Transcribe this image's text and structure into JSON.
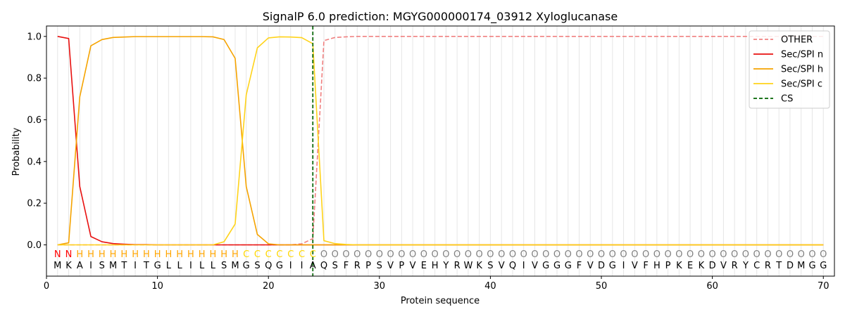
{
  "chart_data": {
    "type": "line",
    "title": "SignalP 6.0 prediction: MGYG000000174_03912 Xyloglucanase",
    "xlabel": "Protein sequence",
    "ylabel": "Probability",
    "xlim": [
      0,
      71
    ],
    "ylim": [
      -0.15,
      1.05
    ],
    "x_ticks": [
      0,
      10,
      20,
      30,
      40,
      50,
      60,
      70
    ],
    "y_ticks": [
      0.0,
      0.2,
      0.4,
      0.6,
      0.8,
      1.0
    ],
    "x_tick_labels": [
      "0",
      "10",
      "20",
      "30",
      "40",
      "50",
      "60",
      "70"
    ],
    "y_tick_labels": [
      "0.0",
      "0.2",
      "0.4",
      "0.6",
      "0.8",
      "1.0"
    ],
    "grid": "vertical lines at each residue",
    "legend_position": "top-right",
    "sequence": [
      "M",
      "K",
      "A",
      "I",
      "S",
      "M",
      "T",
      "I",
      "T",
      "G",
      "L",
      "L",
      "I",
      "L",
      "L",
      "S",
      "M",
      "G",
      "S",
      "Q",
      "G",
      "I",
      "I",
      "A",
      "Q",
      "S",
      "F",
      "R",
      "P",
      "S",
      "V",
      "P",
      "V",
      "E",
      "H",
      "Y",
      "R",
      "W",
      "K",
      "S",
      "V",
      "Q",
      "I",
      "V",
      "G",
      "G",
      "G",
      "F",
      "V",
      "D",
      "G",
      "I",
      "V",
      "F",
      "H",
      "P",
      "K",
      "E",
      "K",
      "D",
      "V",
      "R",
      "Y",
      "C",
      "R",
      "T",
      "D",
      "M",
      "G",
      "G"
    ],
    "region_labels": [
      "N",
      "N",
      "H",
      "H",
      "H",
      "H",
      "H",
      "H",
      "H",
      "H",
      "H",
      "H",
      "H",
      "H",
      "H",
      "H",
      "H",
      "C",
      "C",
      "C",
      "C",
      "C",
      "C",
      "C",
      "O",
      "O",
      "O",
      "O",
      "O",
      "O",
      "O",
      "O",
      "O",
      "O",
      "O",
      "O",
      "O",
      "O",
      "O",
      "O",
      "O",
      "O",
      "O",
      "O",
      "O",
      "O",
      "O",
      "O",
      "O",
      "O",
      "O",
      "O",
      "O",
      "O",
      "O",
      "O",
      "O",
      "O",
      "O",
      "O",
      "O",
      "O",
      "O",
      "O",
      "O",
      "O",
      "O",
      "O",
      "O",
      "O"
    ],
    "region_colors": {
      "N": "#ff0000",
      "H": "#ffa500",
      "C": "#ffd700",
      "O": "#808080"
    },
    "cleavage_site": 24,
    "series": [
      {
        "name": "OTHER",
        "color": "#f08080",
        "dash": "dashed",
        "x": [
          1,
          2,
          3,
          4,
          5,
          6,
          7,
          8,
          9,
          10,
          11,
          12,
          13,
          14,
          15,
          16,
          17,
          18,
          19,
          20,
          21,
          22,
          23,
          24,
          25,
          26,
          27,
          28,
          29,
          30,
          31,
          32,
          33,
          34,
          35,
          36,
          37,
          38,
          39,
          40,
          41,
          42,
          43,
          44,
          45,
          46,
          47,
          48,
          49,
          50,
          51,
          52,
          53,
          54,
          55,
          56,
          57,
          58,
          59,
          60,
          61,
          62,
          63,
          64,
          65,
          66,
          67,
          68,
          69,
          70
        ],
        "values": [
          0.0,
          0.0,
          0.0,
          0.0,
          0.0,
          0.0,
          0.0,
          0.0,
          0.0,
          0.0,
          0.0,
          0.0,
          0.0,
          0.0,
          0.0,
          0.0,
          0.0,
          0.0,
          0.0,
          0.0,
          0.0,
          0.0,
          0.005,
          0.03,
          0.98,
          0.995,
          0.998,
          1.0,
          1.0,
          1.0,
          1.0,
          1.0,
          1.0,
          1.0,
          1.0,
          1.0,
          1.0,
          1.0,
          1.0,
          1.0,
          1.0,
          1.0,
          1.0,
          1.0,
          1.0,
          1.0,
          1.0,
          1.0,
          1.0,
          1.0,
          1.0,
          1.0,
          1.0,
          1.0,
          1.0,
          1.0,
          1.0,
          1.0,
          1.0,
          1.0,
          1.0,
          1.0,
          1.0,
          1.0,
          1.0,
          1.0,
          1.0,
          1.0,
          1.0,
          1.0
        ]
      },
      {
        "name": "Sec/SPI n",
        "color": "#e8100f",
        "dash": "solid",
        "x": [
          1,
          2,
          3,
          4,
          5,
          6,
          7,
          8,
          9,
          10,
          11,
          12,
          13,
          14,
          15,
          16,
          17,
          18,
          19,
          20,
          21,
          22,
          23,
          24,
          25,
          26,
          27,
          28,
          29,
          30,
          31,
          32,
          33,
          34,
          35,
          36,
          37,
          38,
          39,
          40,
          41,
          42,
          43,
          44,
          45,
          46,
          47,
          48,
          49,
          50,
          51,
          52,
          53,
          54,
          55,
          56,
          57,
          58,
          59,
          60,
          61,
          62,
          63,
          64,
          65,
          66,
          67,
          68,
          69,
          70
        ],
        "values": [
          1.0,
          0.99,
          0.28,
          0.04,
          0.015,
          0.006,
          0.003,
          0.001,
          0.001,
          0.0,
          0.0,
          0.0,
          0.0,
          0.0,
          0.0,
          0.0,
          0.0,
          0.0,
          0.0,
          0.0,
          0.0,
          0.0,
          0.0,
          0.0,
          0.0,
          0.0,
          0.0,
          0.0,
          0.0,
          0.0,
          0.0,
          0.0,
          0.0,
          0.0,
          0.0,
          0.0,
          0.0,
          0.0,
          0.0,
          0.0,
          0.0,
          0.0,
          0.0,
          0.0,
          0.0,
          0.0,
          0.0,
          0.0,
          0.0,
          0.0,
          0.0,
          0.0,
          0.0,
          0.0,
          0.0,
          0.0,
          0.0,
          0.0,
          0.0,
          0.0,
          0.0,
          0.0,
          0.0,
          0.0,
          0.0,
          0.0,
          0.0,
          0.0,
          0.0,
          0.0
        ]
      },
      {
        "name": "Sec/SPI h",
        "color": "#f5a300",
        "dash": "solid",
        "x": [
          1,
          2,
          3,
          4,
          5,
          6,
          7,
          8,
          9,
          10,
          11,
          12,
          13,
          14,
          15,
          16,
          17,
          18,
          19,
          20,
          21,
          22,
          23,
          24,
          25,
          26,
          27,
          28,
          29,
          30,
          31,
          32,
          33,
          34,
          35,
          36,
          37,
          38,
          39,
          40,
          41,
          42,
          43,
          44,
          45,
          46,
          47,
          48,
          49,
          50,
          51,
          52,
          53,
          54,
          55,
          56,
          57,
          58,
          59,
          60,
          61,
          62,
          63,
          64,
          65,
          66,
          67,
          68,
          69,
          70
        ],
        "values": [
          0.0,
          0.01,
          0.71,
          0.955,
          0.985,
          0.995,
          0.997,
          0.999,
          0.999,
          0.999,
          0.999,
          0.999,
          0.999,
          0.999,
          0.998,
          0.985,
          0.895,
          0.28,
          0.05,
          0.005,
          0.0,
          0.0,
          0.0,
          0.0,
          0.0,
          0.0,
          0.0,
          0.0,
          0.0,
          0.0,
          0.0,
          0.0,
          0.0,
          0.0,
          0.0,
          0.0,
          0.0,
          0.0,
          0.0,
          0.0,
          0.0,
          0.0,
          0.0,
          0.0,
          0.0,
          0.0,
          0.0,
          0.0,
          0.0,
          0.0,
          0.0,
          0.0,
          0.0,
          0.0,
          0.0,
          0.0,
          0.0,
          0.0,
          0.0,
          0.0,
          0.0,
          0.0,
          0.0,
          0.0,
          0.0,
          0.0,
          0.0,
          0.0,
          0.0,
          0.0
        ]
      },
      {
        "name": "Sec/SPI c",
        "color": "#ffd31a",
        "dash": "solid",
        "x": [
          1,
          2,
          3,
          4,
          5,
          6,
          7,
          8,
          9,
          10,
          11,
          12,
          13,
          14,
          15,
          16,
          17,
          18,
          19,
          20,
          21,
          22,
          23,
          24,
          25,
          26,
          27,
          28,
          29,
          30,
          31,
          32,
          33,
          34,
          35,
          36,
          37,
          38,
          39,
          40,
          41,
          42,
          43,
          44,
          45,
          46,
          47,
          48,
          49,
          50,
          51,
          52,
          53,
          54,
          55,
          56,
          57,
          58,
          59,
          60,
          61,
          62,
          63,
          64,
          65,
          66,
          67,
          68,
          69,
          70
        ],
        "values": [
          0.0,
          0.0,
          0.0,
          0.0,
          0.0,
          0.0,
          0.0,
          0.0,
          0.0,
          0.0,
          0.0,
          0.0,
          0.0,
          0.0,
          0.0,
          0.015,
          0.1,
          0.72,
          0.945,
          0.993,
          0.998,
          0.997,
          0.994,
          0.965,
          0.02,
          0.006,
          0.002,
          0.0,
          0.0,
          0.0,
          0.0,
          0.0,
          0.0,
          0.0,
          0.0,
          0.0,
          0.0,
          0.0,
          0.0,
          0.0,
          0.0,
          0.0,
          0.0,
          0.0,
          0.0,
          0.0,
          0.0,
          0.0,
          0.0,
          0.0,
          0.0,
          0.0,
          0.0,
          0.0,
          0.0,
          0.0,
          0.0,
          0.0,
          0.0,
          0.0,
          0.0,
          0.0,
          0.0,
          0.0,
          0.0,
          0.0,
          0.0,
          0.0,
          0.0,
          0.0
        ]
      }
    ],
    "legend": [
      {
        "label": "OTHER",
        "color": "#f08080",
        "dash": "dashed"
      },
      {
        "label": "Sec/SPI n",
        "color": "#e8100f",
        "dash": "solid"
      },
      {
        "label": "Sec/SPI h",
        "color": "#f5a300",
        "dash": "solid"
      },
      {
        "label": "Sec/SPI c",
        "color": "#ffd31a",
        "dash": "solid"
      },
      {
        "label": "CS",
        "color": "#006400",
        "dash": "dashed"
      }
    ]
  }
}
